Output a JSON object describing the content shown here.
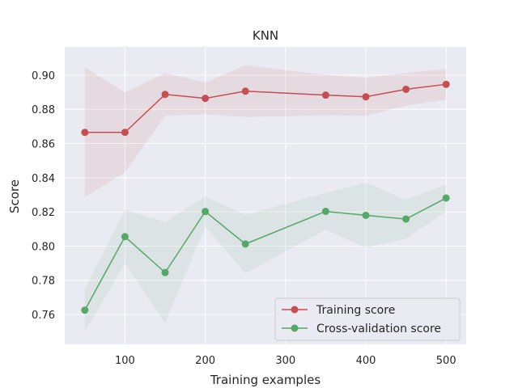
{
  "chart_data": {
    "type": "line",
    "title": "KNN",
    "xlabel": "Training examples",
    "ylabel": "Score",
    "xlim": [
      25,
      525
    ],
    "ylim": [
      0.7425,
      0.9165
    ],
    "xticks": [
      100,
      200,
      300,
      400,
      500
    ],
    "yticks": [
      0.76,
      0.78,
      0.8,
      0.82,
      0.84,
      0.86,
      0.88,
      0.9
    ],
    "ytick_labels": [
      "0.76",
      "0.78",
      "0.80",
      "0.82",
      "0.84",
      "0.86",
      "0.88",
      "0.90"
    ],
    "grid": true,
    "legend_position": "lower-right",
    "background": "#eaeaf2",
    "series": [
      {
        "name": "Training score",
        "color": "#c44e52",
        "x": [
          50,
          100,
          150,
          200,
          250,
          350,
          400,
          450,
          500
        ],
        "y": [
          0.8665,
          0.8665,
          0.8887,
          0.8864,
          0.8906,
          0.8883,
          0.8873,
          0.8917,
          0.8946
        ],
        "y_upper": [
          0.9045,
          0.8899,
          0.9012,
          0.8957,
          0.9057,
          0.9002,
          0.8984,
          0.9013,
          0.9035
        ],
        "y_lower": [
          0.8285,
          0.8431,
          0.8762,
          0.8771,
          0.8755,
          0.8764,
          0.8762,
          0.8821,
          0.8857
        ]
      },
      {
        "name": "Cross-validation score",
        "color": "#55a868",
        "x": [
          50,
          100,
          150,
          200,
          250,
          350,
          400,
          450,
          500
        ],
        "y": [
          0.7625,
          0.8055,
          0.7845,
          0.8202,
          0.8012,
          0.8203,
          0.818,
          0.8158,
          0.8281
        ],
        "y_upper": [
          0.7748,
          0.8214,
          0.814,
          0.8289,
          0.8183,
          0.831,
          0.837,
          0.8271,
          0.8361
        ],
        "y_lower": [
          0.7502,
          0.7896,
          0.755,
          0.8115,
          0.7841,
          0.8096,
          0.799,
          0.8045,
          0.8201
        ]
      }
    ]
  }
}
